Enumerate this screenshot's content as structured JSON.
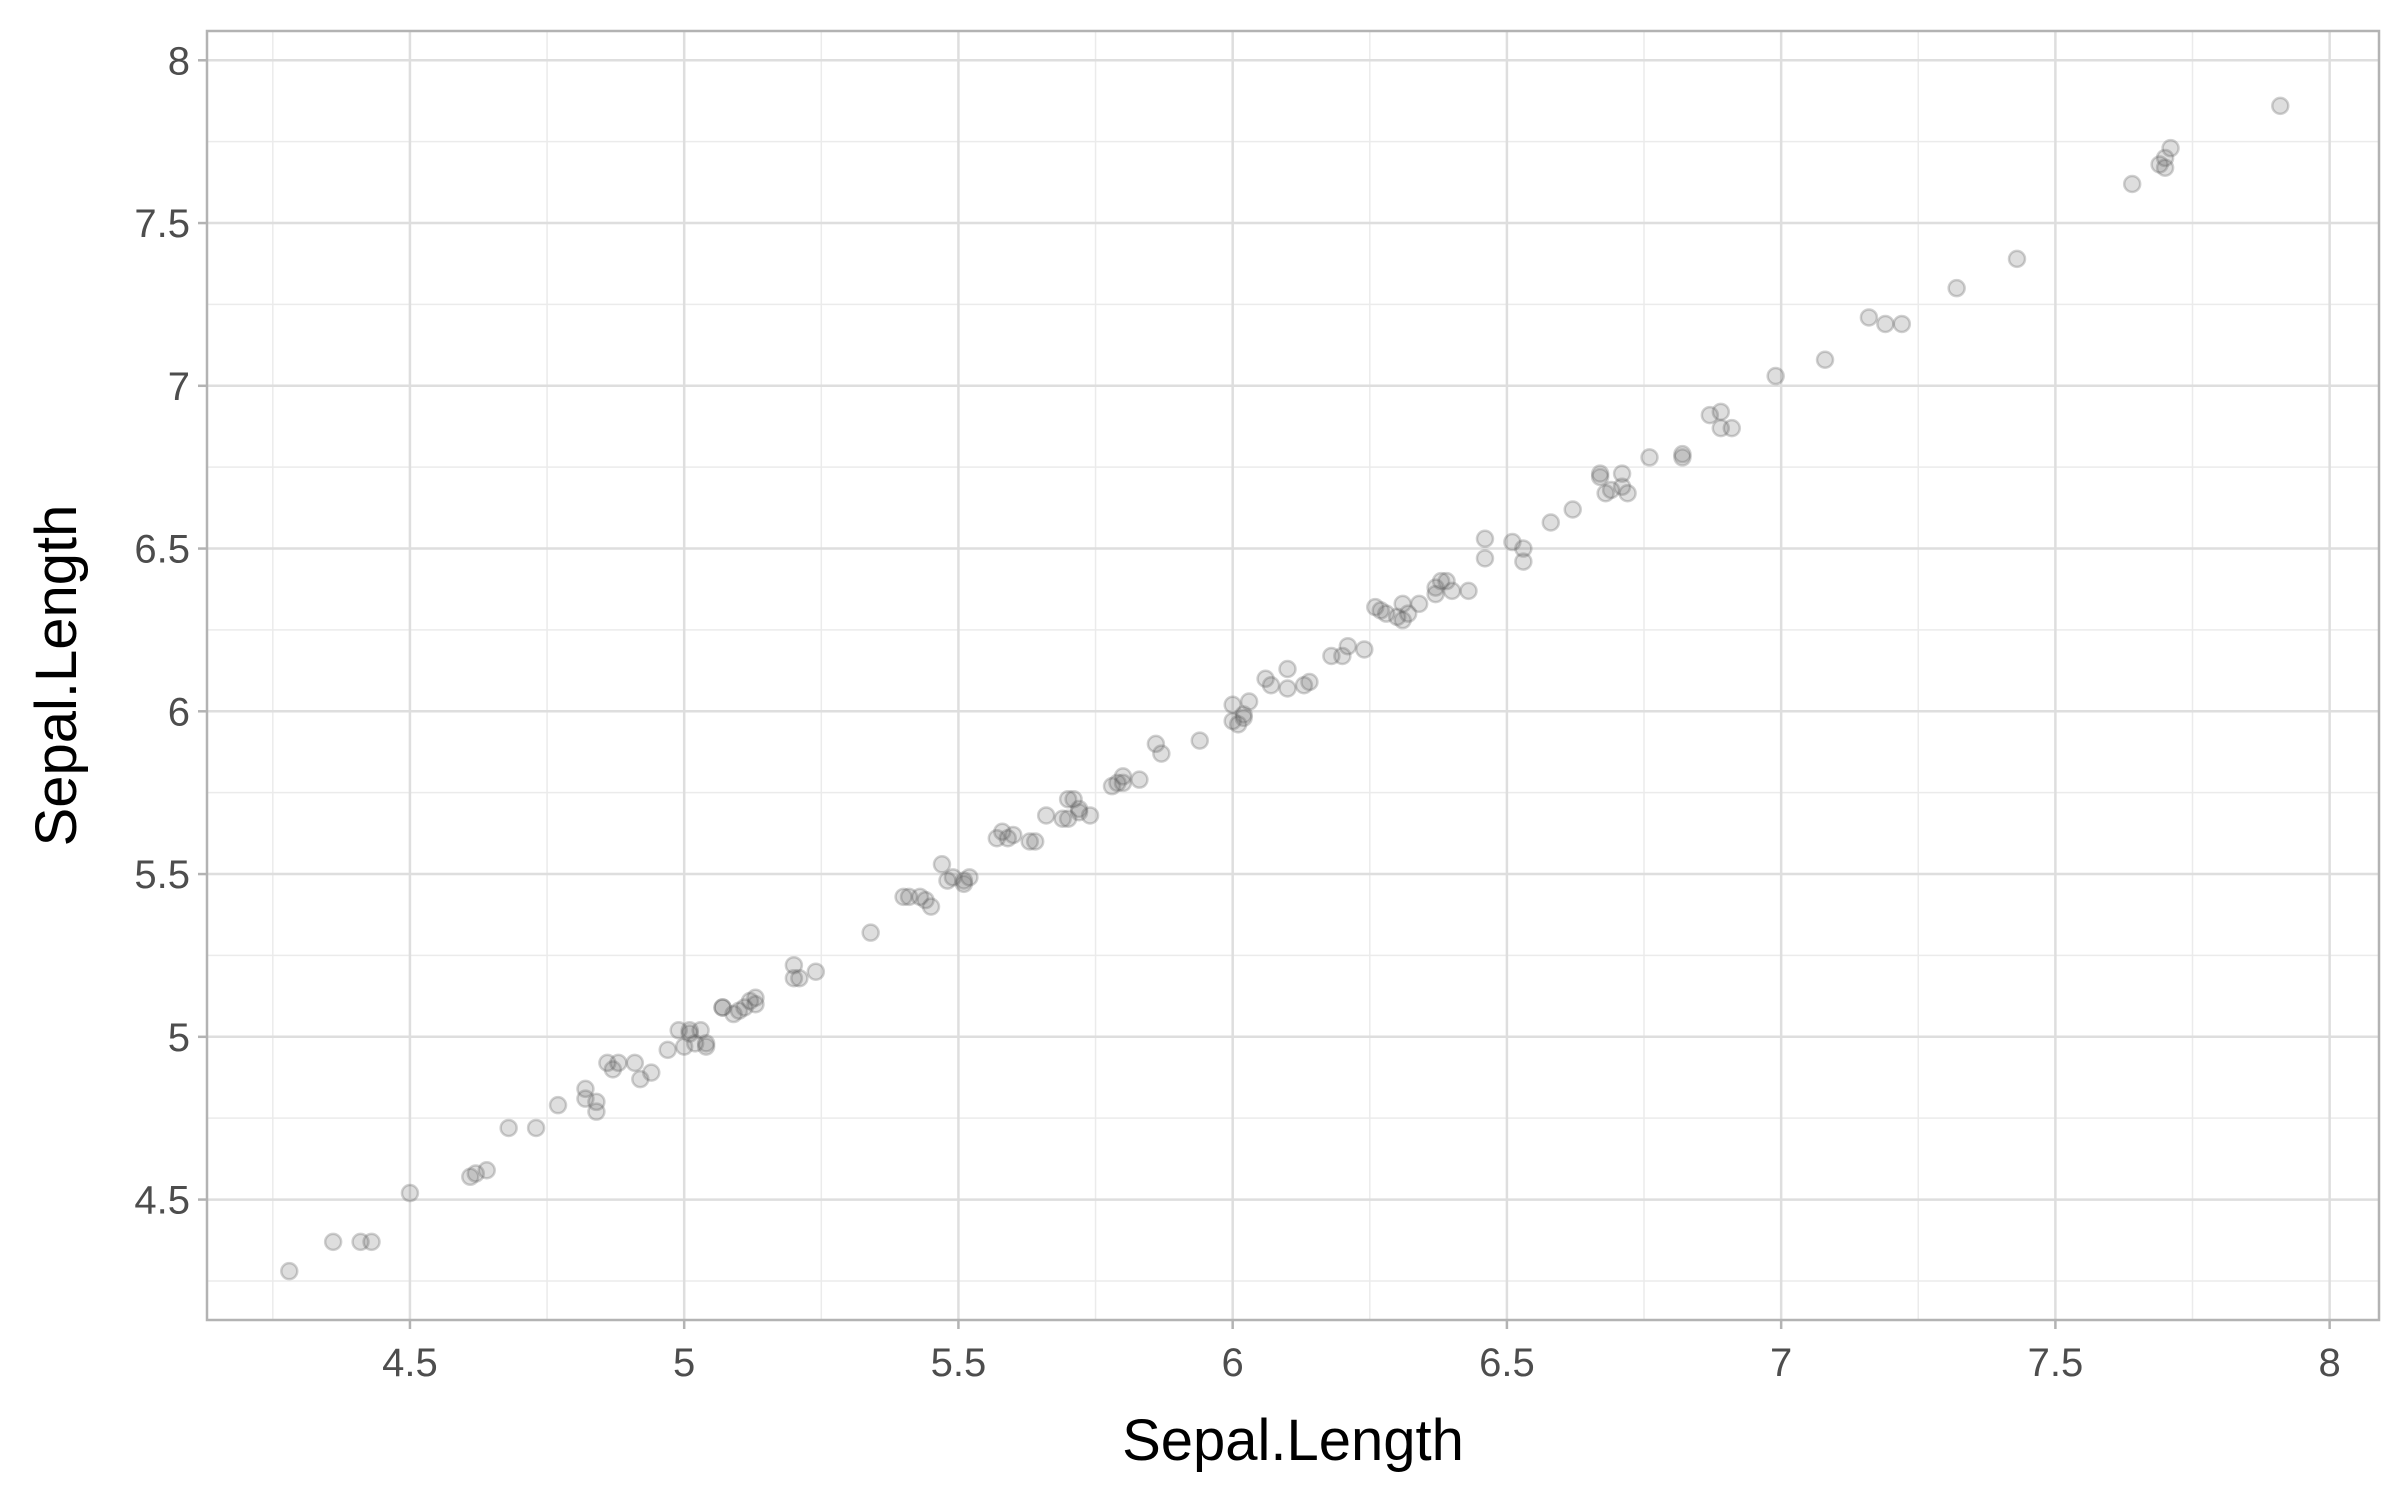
{
  "chart_data": {
    "type": "scatter",
    "title": "",
    "xlabel": "Sepal.Length",
    "ylabel": "Sepal.Length",
    "xlim": [
      4.13,
      8.09
    ],
    "ylim": [
      4.13,
      8.09
    ],
    "x_ticks": [
      4.5,
      5,
      5.5,
      6,
      6.5,
      7,
      7.5,
      8
    ],
    "x_tick_labels": [
      "4.5",
      "5",
      "5.5",
      "6",
      "6.5",
      "7",
      "7.5",
      "8"
    ],
    "y_ticks": [
      4.5,
      5,
      5.5,
      6,
      6.5,
      7,
      7.5,
      8
    ],
    "y_tick_labels": [
      "4.5",
      "5",
      "5.5",
      "6",
      "6.5",
      "7",
      "7.5",
      "8"
    ],
    "grid": true,
    "legend": "none",
    "point_color": "#595959",
    "point_alpha": 0.2,
    "points": [
      [
        4.28,
        4.28
      ],
      [
        4.36,
        4.37
      ],
      [
        4.41,
        4.37
      ],
      [
        4.43,
        4.37
      ],
      [
        4.5,
        4.52
      ],
      [
        4.61,
        4.57
      ],
      [
        4.62,
        4.58
      ],
      [
        4.64,
        4.59
      ],
      [
        4.68,
        4.72
      ],
      [
        4.73,
        4.72
      ],
      [
        4.77,
        4.79
      ],
      [
        4.82,
        4.81
      ],
      [
        4.82,
        4.84
      ],
      [
        4.84,
        4.77
      ],
      [
        4.84,
        4.8
      ],
      [
        4.86,
        4.92
      ],
      [
        4.87,
        4.9
      ],
      [
        4.88,
        4.92
      ],
      [
        4.91,
        4.92
      ],
      [
        4.92,
        4.87
      ],
      [
        4.94,
        4.89
      ],
      [
        4.97,
        4.96
      ],
      [
        4.99,
        5.02
      ],
      [
        5.0,
        4.97
      ],
      [
        5.01,
        5.02
      ],
      [
        5.01,
        5.01
      ],
      [
        5.02,
        4.98
      ],
      [
        5.03,
        5.02
      ],
      [
        5.04,
        4.98
      ],
      [
        5.04,
        4.97
      ],
      [
        5.07,
        5.09
      ],
      [
        5.07,
        5.09
      ],
      [
        5.09,
        5.07
      ],
      [
        5.1,
        5.08
      ],
      [
        5.11,
        5.09
      ],
      [
        5.12,
        5.11
      ],
      [
        5.13,
        5.12
      ],
      [
        5.13,
        5.1
      ],
      [
        5.2,
        5.22
      ],
      [
        5.2,
        5.18
      ],
      [
        5.21,
        5.18
      ],
      [
        5.24,
        5.2
      ],
      [
        5.34,
        5.32
      ],
      [
        5.4,
        5.43
      ],
      [
        5.41,
        5.43
      ],
      [
        5.43,
        5.43
      ],
      [
        5.44,
        5.42
      ],
      [
        5.45,
        5.4
      ],
      [
        5.47,
        5.53
      ],
      [
        5.48,
        5.48
      ],
      [
        5.49,
        5.49
      ],
      [
        5.51,
        5.47
      ],
      [
        5.51,
        5.48
      ],
      [
        5.52,
        5.49
      ],
      [
        5.57,
        5.61
      ],
      [
        5.58,
        5.63
      ],
      [
        5.59,
        5.61
      ],
      [
        5.6,
        5.62
      ],
      [
        5.63,
        5.6
      ],
      [
        5.64,
        5.6
      ],
      [
        5.66,
        5.68
      ],
      [
        5.69,
        5.67
      ],
      [
        5.7,
        5.73
      ],
      [
        5.7,
        5.67
      ],
      [
        5.71,
        5.73
      ],
      [
        5.72,
        5.7
      ],
      [
        5.72,
        5.69
      ],
      [
        5.74,
        5.68
      ],
      [
        5.78,
        5.77
      ],
      [
        5.79,
        5.78
      ],
      [
        5.8,
        5.8
      ],
      [
        5.8,
        5.78
      ],
      [
        5.83,
        5.79
      ],
      [
        5.86,
        5.9
      ],
      [
        5.87,
        5.87
      ],
      [
        5.94,
        5.91
      ],
      [
        6.0,
        6.02
      ],
      [
        6.0,
        5.97
      ],
      [
        6.01,
        5.96
      ],
      [
        6.02,
        5.98
      ],
      [
        6.02,
        5.99
      ],
      [
        6.03,
        6.03
      ],
      [
        6.06,
        6.1
      ],
      [
        6.07,
        6.08
      ],
      [
        6.1,
        6.13
      ],
      [
        6.1,
        6.07
      ],
      [
        6.13,
        6.08
      ],
      [
        6.14,
        6.09
      ],
      [
        6.18,
        6.17
      ],
      [
        6.2,
        6.17
      ],
      [
        6.21,
        6.2
      ],
      [
        6.24,
        6.19
      ],
      [
        6.26,
        6.32
      ],
      [
        6.27,
        6.31
      ],
      [
        6.28,
        6.3
      ],
      [
        6.3,
        6.29
      ],
      [
        6.31,
        6.28
      ],
      [
        6.31,
        6.33
      ],
      [
        6.32,
        6.3
      ],
      [
        6.34,
        6.33
      ],
      [
        6.37,
        6.36
      ],
      [
        6.37,
        6.38
      ],
      [
        6.38,
        6.4
      ],
      [
        6.39,
        6.4
      ],
      [
        6.4,
        6.37
      ],
      [
        6.43,
        6.37
      ],
      [
        6.46,
        6.53
      ],
      [
        6.46,
        6.47
      ],
      [
        6.51,
        6.52
      ],
      [
        6.53,
        6.5
      ],
      [
        6.53,
        6.46
      ],
      [
        6.58,
        6.58
      ],
      [
        6.62,
        6.62
      ],
      [
        6.67,
        6.72
      ],
      [
        6.67,
        6.73
      ],
      [
        6.68,
        6.67
      ],
      [
        6.69,
        6.68
      ],
      [
        6.71,
        6.69
      ],
      [
        6.71,
        6.73
      ],
      [
        6.72,
        6.67
      ],
      [
        6.76,
        6.78
      ],
      [
        6.82,
        6.79
      ],
      [
        6.82,
        6.78
      ],
      [
        6.87,
        6.91
      ],
      [
        6.89,
        6.87
      ],
      [
        6.89,
        6.92
      ],
      [
        6.91,
        6.87
      ],
      [
        6.99,
        7.03
      ],
      [
        7.08,
        7.08
      ],
      [
        7.16,
        7.21
      ],
      [
        7.19,
        7.19
      ],
      [
        7.22,
        7.19
      ],
      [
        7.32,
        7.3
      ],
      [
        7.43,
        7.39
      ],
      [
        7.64,
        7.62
      ],
      [
        7.69,
        7.68
      ],
      [
        7.7,
        7.7
      ],
      [
        7.7,
        7.67
      ],
      [
        7.71,
        7.73
      ],
      [
        7.91,
        7.86
      ]
    ]
  }
}
